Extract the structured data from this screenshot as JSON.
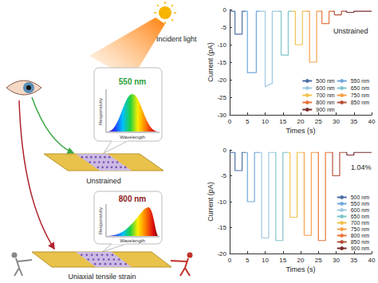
{
  "diagram": {
    "incident_light": "Incident light",
    "panels": [
      {
        "peak": "550 nm",
        "y_label": "Responsivity",
        "x_label": "Wavelength",
        "label": "Unstrained"
      },
      {
        "peak": "800 nm",
        "y_label": "Responsivity",
        "x_label": "Wavelength",
        "label": "Uniaxial tensile strain"
      }
    ]
  },
  "chart_data": [
    {
      "type": "line",
      "annotation": "Unstrained",
      "x_label": "Times (s)",
      "y_label": "Current (pA)",
      "xlim": [
        0,
        40
      ],
      "xticks": [
        0,
        5,
        10,
        15,
        20,
        25,
        30,
        35,
        40
      ],
      "ylim": [
        -30,
        0
      ],
      "yticks": [
        -30,
        -25,
        -20,
        -15,
        -10,
        -5,
        0
      ],
      "grid": false,
      "legend": "lower right",
      "marker": "none",
      "line_style": "solid",
      "series": [
        {
          "name": "500 nm",
          "color": "#4a6fa5",
          "x": [
            0,
            1.5,
            1.5,
            3.5,
            3.5,
            4.5
          ],
          "values": [
            -0.5,
            -0.5,
            -7,
            -7,
            -0.5,
            -0.5
          ]
        },
        {
          "name": "550 nm",
          "color": "#6fa8dc",
          "x": [
            4.5,
            5,
            5,
            7.5,
            7.5,
            8.5
          ],
          "values": [
            -0.5,
            -0.5,
            -18,
            -18,
            -0.5,
            -0.5
          ]
        },
        {
          "name": "600 nm",
          "color": "#9ec9e2",
          "x": [
            8.5,
            10,
            10,
            12,
            12,
            13.5
          ],
          "values": [
            -0.5,
            -0.5,
            -22,
            -21,
            -0.5,
            -0.5
          ]
        },
        {
          "name": "650 nm",
          "color": "#7fc4c8",
          "x": [
            13.5,
            14.5,
            14.5,
            16.5,
            16.5,
            17.5
          ],
          "values": [
            -0.5,
            -0.5,
            -13,
            -13,
            -0.5,
            -0.5
          ]
        },
        {
          "name": "700 nm",
          "color": "#f2c14e",
          "x": [
            17.5,
            18.5,
            18.5,
            20.5,
            20.5,
            21.5
          ],
          "values": [
            -0.5,
            -0.5,
            -10,
            -10,
            -0.5,
            -0.5
          ]
        },
        {
          "name": "750 nm",
          "color": "#f5a04a",
          "x": [
            21.5,
            22.5,
            22.5,
            24.5,
            24.5,
            25.5
          ],
          "values": [
            -0.5,
            -0.5,
            -15,
            -15,
            -0.5,
            -0.5
          ]
        },
        {
          "name": "800 nm",
          "color": "#e8743b",
          "x": [
            25.5,
            26,
            26,
            28,
            28,
            29
          ],
          "values": [
            -0.5,
            -0.5,
            -4,
            -4,
            -0.5,
            -0.5
          ]
        },
        {
          "name": "850 nm",
          "color": "#b5523b",
          "x": [
            29,
            29.5,
            29.5,
            31.5,
            31.5,
            32.5
          ],
          "values": [
            -0.5,
            -0.5,
            -1.5,
            -1.5,
            -0.5,
            -0.5
          ]
        },
        {
          "name": "900 nm",
          "color": "#7a2e2e",
          "x": [
            32.5,
            33,
            33,
            35,
            35,
            40
          ],
          "values": [
            -0.5,
            -0.5,
            -0.8,
            -0.8,
            -0.5,
            -0.5
          ]
        }
      ]
    },
    {
      "type": "line",
      "annotation": "1.04%",
      "x_label": "Times (s)",
      "y_label": "Current (pA)",
      "xlim": [
        0,
        40
      ],
      "xticks": [
        0,
        5,
        10,
        15,
        20,
        25,
        30,
        35,
        40
      ],
      "ylim": [
        -20,
        0
      ],
      "yticks": [
        -20,
        -15,
        -10,
        -5,
        0
      ],
      "grid": false,
      "legend": "lower right",
      "marker": "none",
      "line_style": "solid",
      "series": [
        {
          "name": "500 nm",
          "color": "#4a6fa5",
          "x": [
            0,
            1.5,
            1.5,
            3.5,
            3.5,
            4.5
          ],
          "values": [
            -0.5,
            -0.5,
            -4,
            -4,
            -0.5,
            -0.5
          ]
        },
        {
          "name": "550 nm",
          "color": "#6fa8dc",
          "x": [
            4.5,
            5,
            5,
            7,
            7,
            8.5
          ],
          "values": [
            -0.5,
            -0.5,
            -10,
            -10,
            -0.5,
            -0.5
          ]
        },
        {
          "name": "600 nm",
          "color": "#9ec9e2",
          "x": [
            8.5,
            9,
            9,
            11,
            11,
            12.5
          ],
          "values": [
            -0.5,
            -0.5,
            -17,
            -17,
            -0.5,
            -0.5
          ]
        },
        {
          "name": "650 nm",
          "color": "#7fc4c8",
          "x": [
            12.5,
            13,
            13,
            15,
            15,
            16.5
          ],
          "values": [
            -0.5,
            -0.5,
            -17.5,
            -17.5,
            -0.5,
            -0.5
          ]
        },
        {
          "name": "700 nm",
          "color": "#f2c14e",
          "x": [
            16.5,
            17,
            17,
            19,
            19,
            20.5
          ],
          "values": [
            -0.5,
            -0.5,
            -13,
            -13,
            -0.5,
            -0.5
          ]
        },
        {
          "name": "750 nm",
          "color": "#f5a04a",
          "x": [
            20.5,
            21,
            21,
            23,
            23,
            24.5
          ],
          "values": [
            -0.5,
            -0.5,
            -16.5,
            -16.5,
            -0.5,
            -0.5
          ]
        },
        {
          "name": "800 nm",
          "color": "#e8743b",
          "x": [
            24.5,
            25,
            25,
            27,
            27,
            28.5
          ],
          "values": [
            -0.5,
            -0.5,
            -17.5,
            -17.5,
            -0.5,
            -0.5
          ]
        },
        {
          "name": "850 nm",
          "color": "#b5523b",
          "x": [
            28.5,
            29,
            29,
            31,
            31,
            32.5
          ],
          "values": [
            -0.5,
            -0.5,
            -5,
            -5,
            -0.5,
            -0.5
          ]
        },
        {
          "name": "900 nm",
          "color": "#7a2e2e",
          "x": [
            32.5,
            33,
            33,
            35,
            35,
            40
          ],
          "values": [
            -0.5,
            -0.5,
            -1,
            -1,
            -0.5,
            -0.5
          ]
        }
      ]
    }
  ]
}
